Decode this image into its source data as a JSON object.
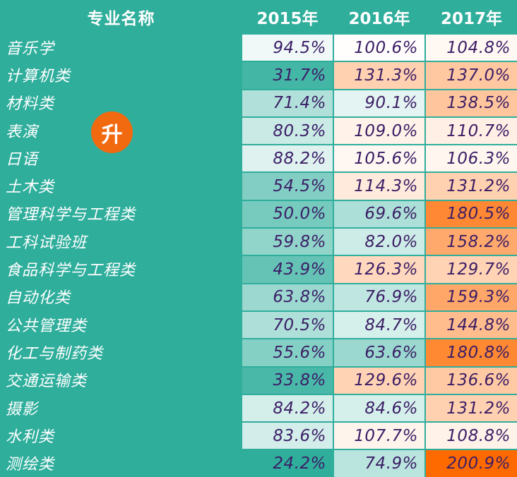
{
  "chart_data": {
    "type": "table",
    "columns": [
      "专业名称",
      "2015年",
      "2016年",
      "2017年"
    ],
    "rows": [
      {
        "name": "音乐学",
        "values": [
          94.5,
          100.6,
          104.8
        ]
      },
      {
        "name": "计算机类",
        "values": [
          31.7,
          131.3,
          137.0
        ]
      },
      {
        "name": "材料类",
        "values": [
          71.4,
          90.1,
          138.5
        ]
      },
      {
        "name": "表演",
        "values": [
          80.3,
          109.0,
          110.7
        ]
      },
      {
        "name": "日语",
        "values": [
          88.2,
          105.6,
          106.3
        ]
      },
      {
        "name": "土木类",
        "values": [
          54.5,
          114.3,
          131.2
        ]
      },
      {
        "name": "管理科学与工程类",
        "values": [
          50.0,
          69.6,
          180.5
        ]
      },
      {
        "name": "工科试验班",
        "values": [
          59.8,
          82.0,
          158.2
        ]
      },
      {
        "name": "食品科学与工程类",
        "values": [
          43.9,
          126.3,
          129.7
        ]
      },
      {
        "name": "自动化类",
        "values": [
          63.8,
          76.9,
          159.3
        ]
      },
      {
        "name": "公共管理类",
        "values": [
          70.5,
          84.7,
          144.8
        ]
      },
      {
        "name": "化工与制药类",
        "values": [
          55.6,
          63.6,
          180.8
        ]
      },
      {
        "name": "交通运输类",
        "values": [
          33.8,
          129.6,
          136.6
        ]
      },
      {
        "name": "摄影",
        "values": [
          84.2,
          84.6,
          131.2
        ]
      },
      {
        "name": "水利类",
        "values": [
          83.6,
          107.7,
          108.8
        ]
      },
      {
        "name": "测绘类",
        "values": [
          24.2,
          74.9,
          200.9
        ]
      }
    ],
    "value_unit": "%",
    "color_scale": {
      "low": "#2fae9c",
      "mid": "#ffffff",
      "high": "#ff6a00",
      "midpoint": 100
    }
  },
  "badge": {
    "label": "升"
  }
}
